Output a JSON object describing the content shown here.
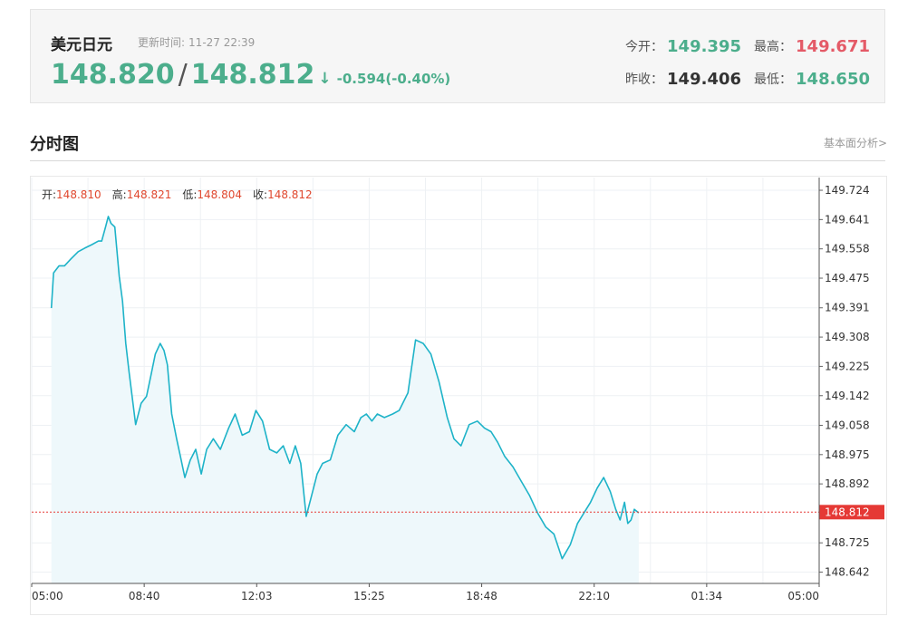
{
  "header": {
    "pair_name": "美元日元",
    "update_label": "更新时间:",
    "update_time": "11-27 22:39",
    "price_bid": "148.820",
    "price_sep": "/",
    "price_ask": "148.812",
    "arrow": "↓",
    "change": "-0.594(-0.40%)",
    "stats": {
      "open_label": "今开：",
      "open": "149.395",
      "high_label": "最高：",
      "high": "149.671",
      "prev_close_label": "昨收：",
      "prev_close": "149.406",
      "low_label": "最低：",
      "low": "148.650"
    },
    "colors": {
      "up": "#e45a67",
      "down": "#4cae8c"
    }
  },
  "section": {
    "title": "分时图",
    "link": "基本面分析>"
  },
  "ohlc": {
    "open_label": "开:",
    "open": "148.810",
    "high_label": "高:",
    "high": "148.821",
    "low_label": "低:",
    "low": "148.804",
    "close_label": "收:",
    "close": "148.812"
  },
  "chart_data": {
    "type": "area",
    "title": "",
    "xlabel": "",
    "ylabel": "",
    "x_ticks": [
      "05:00",
      "08:40",
      "12:03",
      "15:25",
      "18:48",
      "22:10",
      "01:34",
      "05:00"
    ],
    "y_ticks": [
      "149.724",
      "149.641",
      "149.558",
      "149.475",
      "149.391",
      "149.308",
      "149.225",
      "149.142",
      "149.058",
      "148.975",
      "148.892",
      "148.812",
      "148.725",
      "148.642"
    ],
    "ylim": [
      148.61,
      149.76
    ],
    "x_range_minutes": [
      0,
      1440
    ],
    "current_price": 148.812,
    "current_price_label": "148.812",
    "line_color": "#1eb3c8",
    "fill_color": "#eef8fb",
    "grid": true,
    "x": [
      36,
      40,
      50,
      60,
      72,
      85,
      97,
      110,
      122,
      128,
      135,
      140,
      145,
      152,
      160,
      166,
      172,
      178,
      190,
      200,
      210,
      218,
      226,
      235,
      242,
      248,
      256,
      265,
      272,
      280,
      290,
      300,
      310,
      320,
      332,
      345,
      360,
      372,
      385,
      398,
      410,
      422,
      435,
      448,
      460,
      472,
      482,
      492,
      502,
      512,
      522,
      532,
      546,
      560,
      575,
      590,
      602,
      612,
      622,
      632,
      645,
      660,
      672,
      688,
      702,
      716,
      730,
      745,
      760,
      772,
      785,
      800,
      815,
      828,
      840,
      852,
      865,
      880,
      895,
      910,
      925,
      940,
      955,
      970,
      985,
      998,
      1010,
      1022,
      1034,
      1046,
      1058,
      1068,
      1076,
      1084,
      1090,
      1096,
      1102,
      1110
    ],
    "y": [
      149.39,
      149.49,
      149.51,
      149.51,
      149.53,
      149.55,
      149.56,
      149.57,
      149.58,
      149.58,
      149.62,
      149.65,
      149.63,
      149.62,
      149.48,
      149.41,
      149.29,
      149.21,
      149.06,
      149.12,
      149.14,
      149.2,
      149.26,
      149.29,
      149.27,
      149.23,
      149.09,
      149.02,
      148.97,
      148.91,
      148.96,
      148.99,
      148.92,
      148.99,
      149.02,
      148.99,
      149.05,
      149.09,
      149.03,
      149.04,
      149.1,
      149.07,
      148.99,
      148.98,
      149.0,
      148.95,
      149.0,
      148.95,
      148.8,
      148.86,
      148.92,
      148.95,
      148.96,
      149.03,
      149.06,
      149.04,
      149.08,
      149.09,
      149.07,
      149.09,
      149.08,
      149.09,
      149.1,
      149.15,
      149.3,
      149.29,
      149.26,
      149.18,
      149.08,
      149.02,
      149.0,
      149.06,
      149.07,
      149.05,
      149.04,
      149.01,
      148.97,
      148.94,
      148.9,
      148.86,
      148.81,
      148.77,
      148.75,
      148.68,
      148.72,
      148.78,
      148.81,
      148.84,
      148.88,
      148.91,
      148.87,
      148.82,
      148.79,
      148.84,
      148.78,
      148.79,
      148.82,
      148.81
    ]
  }
}
